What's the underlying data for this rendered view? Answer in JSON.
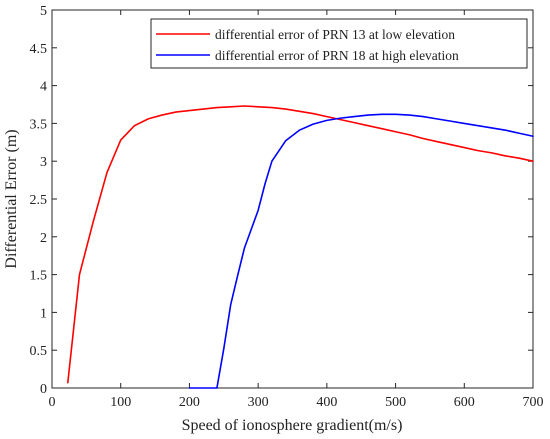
{
  "chart_data": {
    "type": "line",
    "title": "",
    "xlabel": "Speed of ionosphere gradient(m/s)",
    "ylabel": "Differential Error (m)",
    "xlim": [
      0,
      700
    ],
    "ylim": [
      0,
      5
    ],
    "xticks": [
      0,
      100,
      200,
      300,
      400,
      500,
      600,
      700
    ],
    "yticks": [
      0,
      0.5,
      1,
      1.5,
      2,
      2.5,
      3,
      3.5,
      4,
      4.5,
      5
    ],
    "xtick_labels": [
      "0",
      "100",
      "200",
      "300",
      "400",
      "500",
      "600",
      "700"
    ],
    "ytick_labels": [
      "0",
      "0.5",
      "1",
      "1.5",
      "2",
      "2.5",
      "3",
      "3.5",
      "4",
      "4.5",
      "5"
    ],
    "grid": false,
    "legend_position": "top-right",
    "series": [
      {
        "name": "differential error of PRN 13 at low elevation",
        "color": "#ff0000",
        "x": [
          23,
          40,
          60,
          80,
          100,
          120,
          140,
          160,
          180,
          200,
          220,
          240,
          260,
          280,
          300,
          320,
          340,
          360,
          380,
          400,
          420,
          440,
          460,
          480,
          500,
          520,
          540,
          560,
          580,
          600,
          620,
          640,
          660,
          680,
          700
        ],
        "y": [
          0.07,
          1.5,
          2.2,
          2.85,
          3.28,
          3.47,
          3.56,
          3.61,
          3.65,
          3.67,
          3.69,
          3.71,
          3.72,
          3.73,
          3.72,
          3.71,
          3.69,
          3.66,
          3.63,
          3.59,
          3.55,
          3.51,
          3.47,
          3.43,
          3.39,
          3.35,
          3.3,
          3.26,
          3.22,
          3.18,
          3.14,
          3.11,
          3.07,
          3.04,
          3.0
        ]
      },
      {
        "name": "differential error of PRN 18 at high elevation",
        "color": "#0000ff",
        "x": [
          200,
          220,
          240,
          250,
          260,
          270,
          280,
          290,
          300,
          310,
          320,
          340,
          360,
          380,
          400,
          420,
          440,
          460,
          480,
          500,
          520,
          540,
          560,
          580,
          600,
          620,
          640,
          660,
          680,
          700
        ],
        "y": [
          0.0,
          0.0,
          0.0,
          0.52,
          1.1,
          1.48,
          1.85,
          2.1,
          2.35,
          2.7,
          3.0,
          3.27,
          3.41,
          3.49,
          3.54,
          3.57,
          3.59,
          3.61,
          3.62,
          3.62,
          3.61,
          3.59,
          3.56,
          3.53,
          3.5,
          3.47,
          3.44,
          3.41,
          3.37,
          3.33
        ]
      }
    ]
  }
}
